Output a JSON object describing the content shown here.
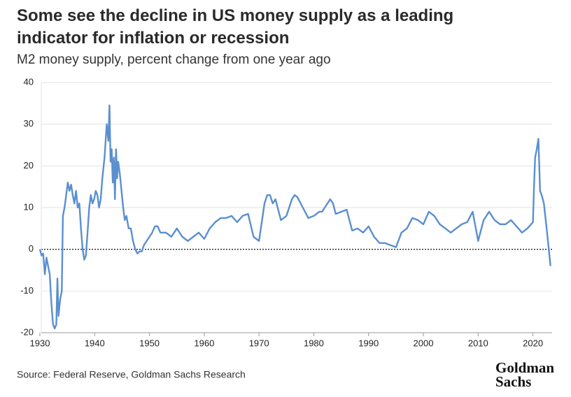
{
  "chart_data": {
    "type": "line",
    "title": [
      "Some see the decline in US money supply as a leading",
      "indicator for inflation or recession"
    ],
    "subtitle": "M2 money supply, percent change from one year ago",
    "source": "Source: Federal Reserve, Goldman Sachs Research",
    "logo": [
      "Goldman",
      "Sachs"
    ],
    "x": [
      1930,
      1930.3,
      1930.6,
      1930.9,
      1931.2,
      1931.5,
      1931.8,
      1932.1,
      1932.4,
      1932.7,
      1933,
      1933.2,
      1933.4,
      1933.7,
      1934,
      1934.2,
      1934.5,
      1934.8,
      1935.1,
      1935.4,
      1935.7,
      1936,
      1936.3,
      1936.6,
      1936.9,
      1937.2,
      1937.5,
      1937.8,
      1938.1,
      1938.4,
      1938.7,
      1939,
      1939.3,
      1939.6,
      1939.9,
      1940.2,
      1940.5,
      1940.8,
      1941.1,
      1941.4,
      1941.8,
      1942.2,
      1942.5,
      1942.7,
      1942.9,
      1943.1,
      1943.3,
      1943.5,
      1943.7,
      1943.9,
      1944.1,
      1944.3,
      1944.6,
      1944.9,
      1945.2,
      1945.5,
      1945.8,
      1946.2,
      1946.6,
      1947,
      1947.4,
      1947.8,
      1948.2,
      1948.6,
      1949,
      1949.5,
      1950,
      1950.5,
      1951,
      1951.5,
      1952,
      1953,
      1954,
      1955,
      1956,
      1957,
      1958,
      1959,
      1960,
      1961,
      1962,
      1963,
      1964,
      1965,
      1966,
      1967,
      1968,
      1969,
      1970,
      1971,
      1971.5,
      1972,
      1972.5,
      1973,
      1974,
      1975,
      1976,
      1976.5,
      1977,
      1978,
      1979,
      1980,
      1981,
      1981.5,
      1982,
      1983,
      1983.5,
      1984,
      1985,
      1986,
      1987,
      1988,
      1989,
      1990,
      1991,
      1992,
      1993,
      1994,
      1995,
      1996,
      1997,
      1998,
      1999,
      2000,
      2001,
      2002,
      2003,
      2004,
      2005,
      2006,
      2007,
      2008,
      2009,
      2010,
      2011,
      2012,
      2013,
      2014,
      2015,
      2016,
      2017,
      2018,
      2019,
      2020,
      2020.2,
      2020.4,
      2020.7,
      2021,
      2021.3,
      2021.6,
      2022,
      2022.5,
      2022.9,
      2023.2
    ],
    "series": [
      {
        "name": "M2 money supply",
        "color": "#5b8fcf",
        "values": [
          0,
          -1.5,
          -1,
          -6,
          -2,
          -4,
          -6,
          -13,
          -18,
          -19,
          -18,
          -7,
          -16,
          -12,
          -10,
          8,
          10,
          13,
          16,
          14,
          15.5,
          13,
          11,
          14,
          10,
          11,
          5,
          0,
          -2.5,
          -1.5,
          4,
          10,
          13,
          11,
          12,
          14,
          13,
          10,
          12,
          17,
          22,
          30,
          26,
          34.5,
          21,
          24,
          16,
          22,
          12,
          24,
          17,
          21,
          18,
          14,
          10,
          7,
          8,
          5,
          5,
          2,
          0,
          -1,
          -0.5,
          -0.5,
          1,
          2,
          3,
          4,
          5.5,
          5.5,
          4,
          4,
          3,
          5,
          3,
          2,
          3,
          4,
          2.5,
          5,
          6.5,
          7.5,
          7.5,
          8,
          6.5,
          8,
          8.5,
          3,
          2,
          11,
          13,
          13,
          11,
          12,
          7,
          8,
          12,
          13,
          12.5,
          10,
          7.5,
          8,
          9,
          9,
          10,
          12,
          11,
          8.5,
          9,
          9.5,
          4.5,
          5,
          4,
          5.5,
          3,
          1.5,
          1.5,
          1,
          0.5,
          4,
          5,
          7.5,
          7,
          6,
          9,
          8,
          6,
          5,
          4,
          5,
          6,
          6.5,
          9,
          2,
          7,
          9,
          7,
          6,
          6,
          7,
          5.5,
          4,
          5,
          6.5,
          15,
          22,
          24,
          26.5,
          14,
          13,
          11,
          5,
          0,
          -4
        ]
      }
    ],
    "xlim": [
      1930,
      2023.5
    ],
    "xticks": [
      1930,
      1940,
      1950,
      1960,
      1970,
      1980,
      1990,
      2000,
      2010,
      2020
    ],
    "ylim": [
      -20,
      40
    ],
    "yticks": [
      -20,
      -10,
      0,
      10,
      20,
      30,
      40
    ],
    "grid": true
  }
}
